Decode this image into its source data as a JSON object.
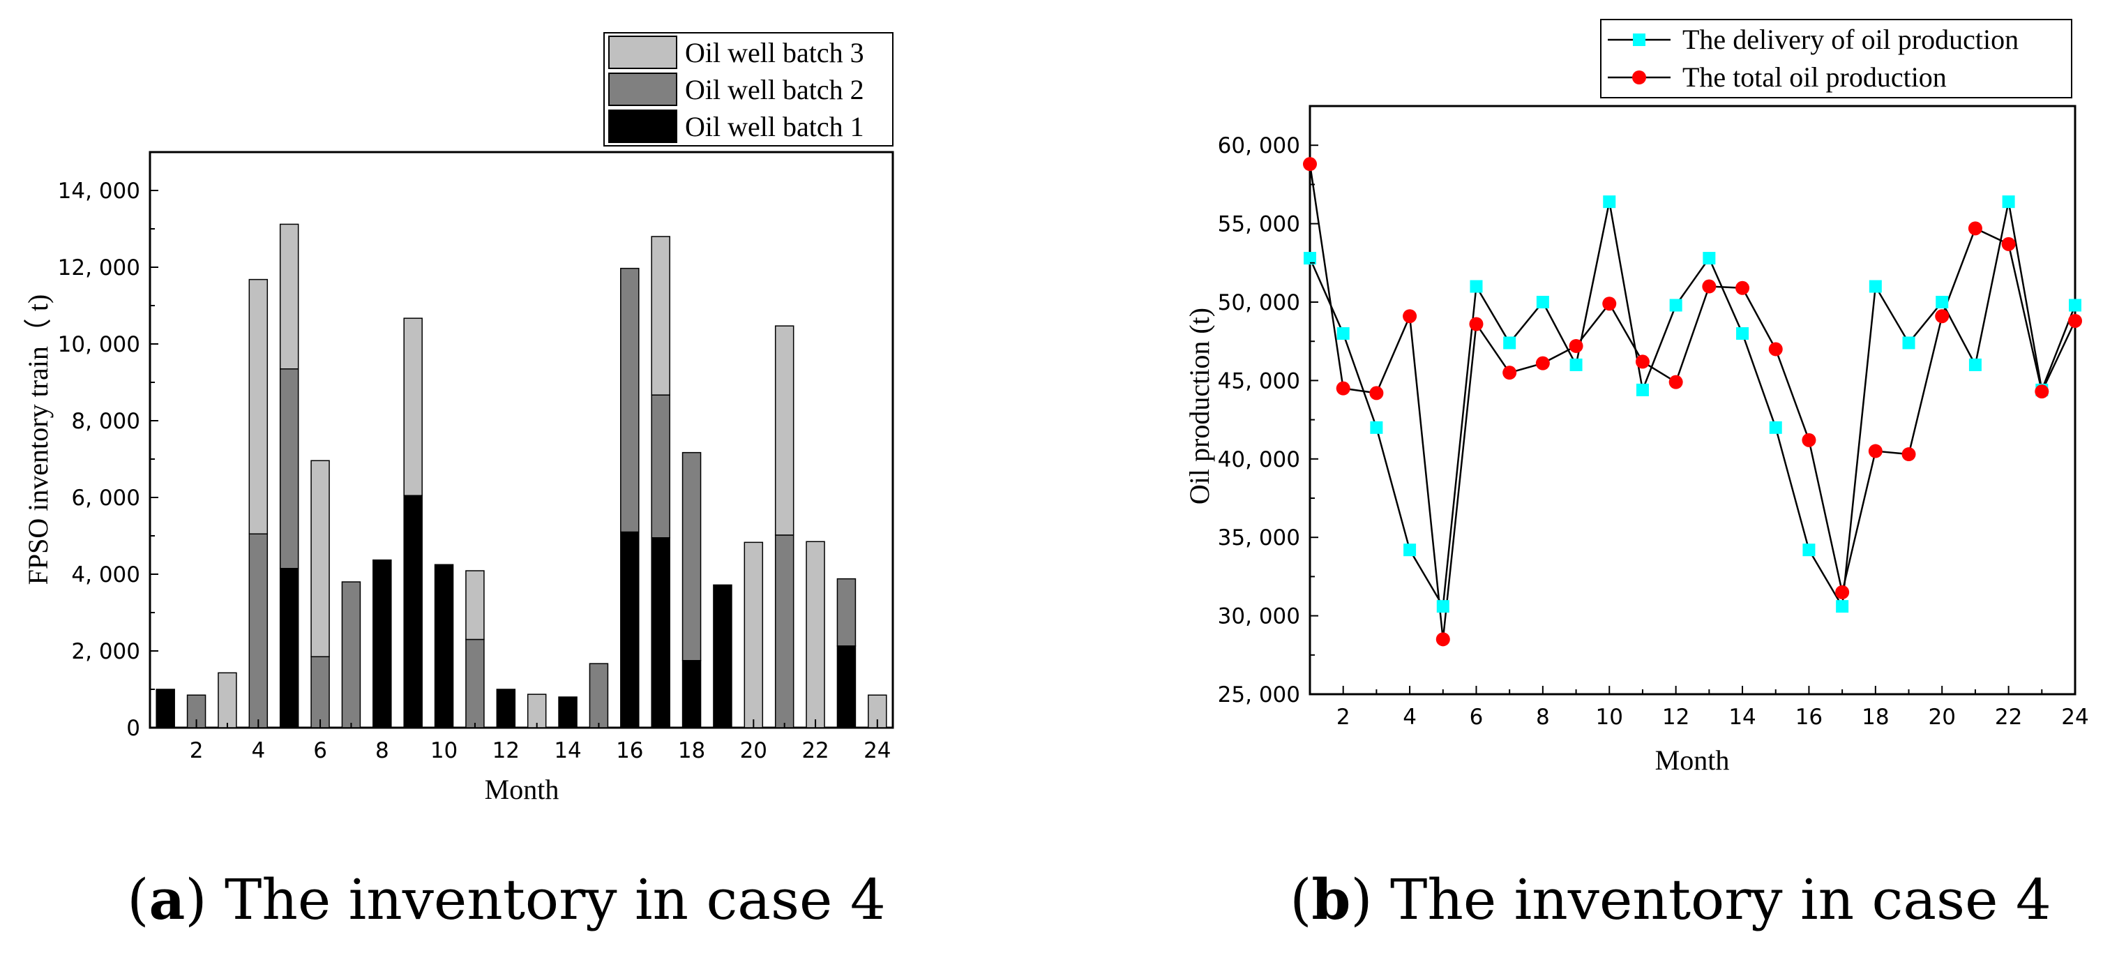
{
  "chart_data": [
    {
      "type": "bar",
      "stacked": true,
      "xlabel": "Month",
      "ylabel": "FPSO inventory train（ t)",
      "ylim": [
        0,
        15000
      ],
      "yticks": [
        0,
        2000,
        4000,
        6000,
        8000,
        10000,
        12000,
        14000
      ],
      "ytick_labels": [
        "0",
        "2, 000",
        "4, 000",
        "6, 000",
        "8, 000",
        "10, 000",
        "12, 000",
        "14, 000"
      ],
      "xticks": [
        2,
        4,
        6,
        8,
        10,
        12,
        14,
        16,
        18,
        20,
        22,
        24
      ],
      "categories": [
        1,
        2,
        3,
        4,
        5,
        6,
        7,
        8,
        9,
        10,
        11,
        12,
        13,
        14,
        15,
        16,
        17,
        18,
        19,
        20,
        21,
        22,
        23,
        24
      ],
      "legend_position": "top-right-outside",
      "series": [
        {
          "name": "Oil well batch 1",
          "color": "#000000",
          "values": [
            1000,
            0,
            0,
            0,
            4150,
            0,
            0,
            4370,
            6050,
            4250,
            0,
            1000,
            0,
            800,
            0,
            5100,
            4950,
            1750,
            3720,
            0,
            0,
            0,
            2130,
            0
          ]
        },
        {
          "name": "Oil well batch 2",
          "color": "#808080",
          "values": [
            0,
            850,
            0,
            5050,
            5200,
            1850,
            3800,
            0,
            0,
            0,
            2300,
            0,
            0,
            0,
            1670,
            6870,
            3720,
            5420,
            0,
            0,
            5020,
            0,
            1750,
            0
          ]
        },
        {
          "name": "Oil well batch 3",
          "color": "#c0c0c0",
          "values": [
            0,
            0,
            1430,
            6630,
            3770,
            5110,
            0,
            0,
            4620,
            0,
            1790,
            0,
            870,
            0,
            0,
            0,
            4130,
            0,
            0,
            4830,
            5450,
            4850,
            0,
            850
          ]
        }
      ],
      "legend_order": [
        "Oil well batch 3",
        "Oil well batch 2",
        "Oil well batch 1"
      ],
      "caption_letter": "a",
      "caption_text": "The inventory in case 4"
    },
    {
      "type": "line",
      "xlabel": "Month",
      "ylabel": "Oil production (t)",
      "xlim": [
        1,
        24
      ],
      "ylim": [
        25000,
        62500
      ],
      "yticks": [
        25000,
        30000,
        35000,
        40000,
        45000,
        50000,
        55000,
        60000
      ],
      "ytick_labels": [
        "25, 000",
        "30, 000",
        "35, 000",
        "40, 000",
        "45, 000",
        "50, 000",
        "55, 000",
        "60, 000"
      ],
      "xticks": [
        2,
        4,
        6,
        8,
        10,
        12,
        14,
        16,
        18,
        20,
        22,
        24
      ],
      "x": [
        1,
        2,
        3,
        4,
        5,
        6,
        7,
        8,
        9,
        10,
        11,
        12,
        13,
        14,
        15,
        16,
        17,
        18,
        19,
        20,
        21,
        22,
        23,
        24
      ],
      "legend_position": "top-right-outside",
      "series": [
        {
          "name": "The delivery of oil production",
          "marker": "square",
          "color": "#00ffff",
          "values": [
            52800,
            48000,
            42000,
            34200,
            30600,
            51000,
            47400,
            50000,
            46000,
            56400,
            44400,
            49800,
            52800,
            48000,
            42000,
            34200,
            30600,
            51000,
            47400,
            50000,
            46000,
            56400,
            44400,
            49800
          ]
        },
        {
          "name": "The total oil production",
          "marker": "circle",
          "color": "#ff0000",
          "values": [
            58800,
            44500,
            44200,
            49100,
            28500,
            48600,
            45500,
            46100,
            47200,
            49900,
            46200,
            44900,
            51000,
            50900,
            47000,
            41200,
            31500,
            40500,
            40300,
            49100,
            54700,
            53700,
            44300,
            48800
          ]
        }
      ],
      "caption_letter": "b",
      "caption_text": "The inventory in case 4"
    }
  ]
}
